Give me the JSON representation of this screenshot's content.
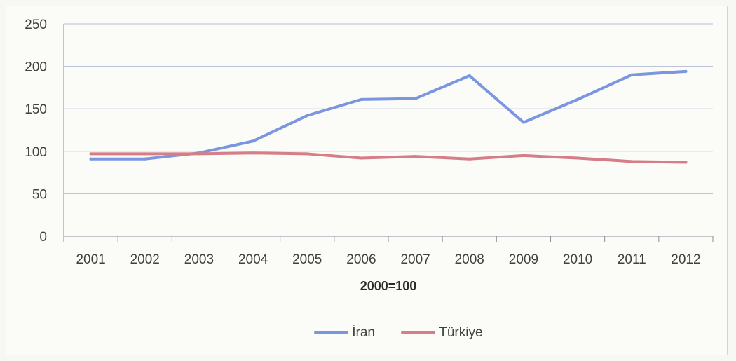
{
  "chart_data": {
    "type": "line",
    "categories": [
      "2001",
      "2002",
      "2003",
      "2004",
      "2005",
      "2006",
      "2007",
      "2008",
      "2009",
      "2010",
      "2011",
      "2012"
    ],
    "series": [
      {
        "name": "İran",
        "color": "#7b96e0",
        "values": [
          91,
          91,
          98,
          112,
          142,
          161,
          162,
          189,
          134,
          161,
          190,
          194
        ]
      },
      {
        "name": "Türkiye",
        "color": "#d67d86",
        "values": [
          97,
          97,
          97,
          98,
          97,
          92,
          94,
          91,
          95,
          92,
          88,
          87
        ]
      }
    ],
    "xlabel": "2000=100",
    "ylabel": "",
    "ylim": [
      0,
      250
    ],
    "yticks": [
      "0",
      "50",
      "100",
      "150",
      "200",
      "250"
    ],
    "grid": true,
    "legend_position": "bottom"
  }
}
